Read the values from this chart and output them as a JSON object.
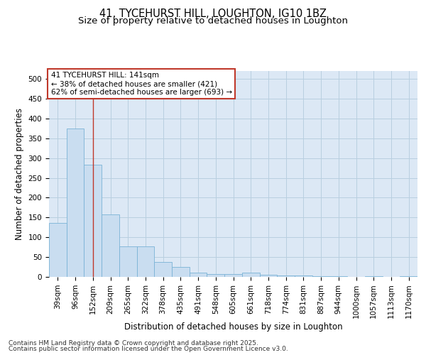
{
  "title": "41, TYCEHURST HILL, LOUGHTON, IG10 1BZ",
  "subtitle": "Size of property relative to detached houses in Loughton",
  "xlabel": "Distribution of detached houses by size in Loughton",
  "ylabel": "Number of detached properties",
  "categories": [
    "39sqm",
    "96sqm",
    "152sqm",
    "209sqm",
    "265sqm",
    "322sqm",
    "378sqm",
    "435sqm",
    "491sqm",
    "548sqm",
    "605sqm",
    "661sqm",
    "718sqm",
    "774sqm",
    "831sqm",
    "887sqm",
    "944sqm",
    "1000sqm",
    "1057sqm",
    "1113sqm",
    "1170sqm"
  ],
  "values": [
    137,
    375,
    284,
    157,
    77,
    77,
    37,
    26,
    11,
    7,
    7,
    10,
    5,
    4,
    3,
    2,
    1,
    0,
    1,
    0,
    2
  ],
  "bar_color": "#c9ddf0",
  "bar_edge_color": "#7ab3d6",
  "vline_x_index": 2,
  "vline_color": "#c0392b",
  "annotation_line1": "41 TYCEHURST HILL: 141sqm",
  "annotation_line2": "← 38% of detached houses are smaller (421)",
  "annotation_line3": "62% of semi-detached houses are larger (693) →",
  "annotation_box_color": "white",
  "annotation_box_edge_color": "#c0392b",
  "ylim": [
    0,
    520
  ],
  "yticks": [
    0,
    50,
    100,
    150,
    200,
    250,
    300,
    350,
    400,
    450,
    500
  ],
  "grid_color": "#b8cfe0",
  "background_color": "#dce8f5",
  "footer_line1": "Contains HM Land Registry data © Crown copyright and database right 2025.",
  "footer_line2": "Contains public sector information licensed under the Open Government Licence v3.0.",
  "title_fontsize": 10.5,
  "subtitle_fontsize": 9.5,
  "axis_label_fontsize": 8.5,
  "tick_fontsize": 7.5,
  "annotation_fontsize": 7.5,
  "footer_fontsize": 6.5
}
